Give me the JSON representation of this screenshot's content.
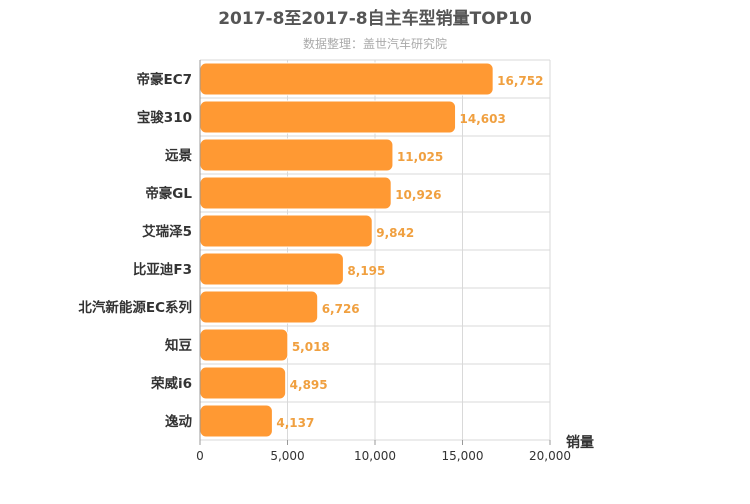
{
  "chart_data": {
    "type": "bar",
    "orientation": "horizontal",
    "title": "2017-8至2017-8自主车型销量TOP10",
    "subtitle": "数据整理：盖世汽车研究院",
    "xlabel": "销量",
    "ylabel": "",
    "xlim": [
      0,
      20000
    ],
    "x_ticks": [
      "0",
      "5,000",
      "10,000",
      "15,000",
      "20,000"
    ],
    "x_tick_values": [
      0,
      5000,
      10000,
      15000,
      20000
    ],
    "categories": [
      "帝豪EC7",
      "宝骏310",
      "远景",
      "帝豪GL",
      "艾瑞泽5",
      "比亚迪F3",
      "北汽新能源EC系列",
      "知豆",
      "荣威i6",
      "逸动"
    ],
    "values": [
      16752,
      14603,
      11025,
      10926,
      9842,
      8195,
      6726,
      5018,
      4895,
      4137
    ],
    "value_labels": [
      "16,752",
      "14,603",
      "11,025",
      "10,926",
      "9,842",
      "8,195",
      "6,726",
      "5,018",
      "4,895",
      "4,137"
    ],
    "grid": true,
    "legend": "none",
    "colors": {
      "bar": "#ff9933",
      "bar_border": "#ffffff",
      "value_label": "#f0a040",
      "title": "#555555",
      "subtitle": "#aaaaaa",
      "axis_text": "#333333",
      "grid": "#d9d9d9"
    }
  }
}
